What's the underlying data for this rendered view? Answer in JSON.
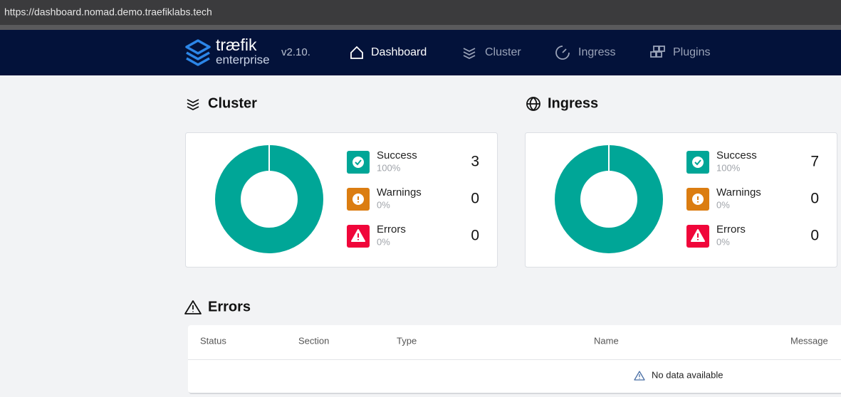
{
  "address_bar": {
    "url": "https://dashboard.nomad.demo.traefiklabs.tech"
  },
  "nav": {
    "brand": "træfik",
    "brand_sub": "enterprise",
    "version": "v2.10.",
    "items": [
      "Dashboard",
      "Cluster",
      "Ingress",
      "Plugins"
    ],
    "active": 0
  },
  "panels": [
    {
      "title": "Cluster",
      "stats": [
        {
          "label": "Success",
          "percent": "100%",
          "count": 3,
          "color": "#00a697"
        },
        {
          "label": "Warnings",
          "percent": "0%",
          "count": 0,
          "color": "#db7d11"
        },
        {
          "label": "Errors",
          "percent": "0%",
          "count": 0,
          "color": "#f0063a"
        }
      ]
    },
    {
      "title": "Ingress",
      "stats": [
        {
          "label": "Success",
          "percent": "100%",
          "count": 7,
          "color": "#00a697"
        },
        {
          "label": "Warnings",
          "percent": "0%",
          "count": 0,
          "color": "#db7d11"
        },
        {
          "label": "Errors",
          "percent": "0%",
          "count": 0,
          "color": "#f0063a"
        }
      ]
    }
  ],
  "errors": {
    "title": "Errors",
    "columns": [
      "Status",
      "Section",
      "Type",
      "Name",
      "Message"
    ],
    "empty": "No data available"
  }
}
